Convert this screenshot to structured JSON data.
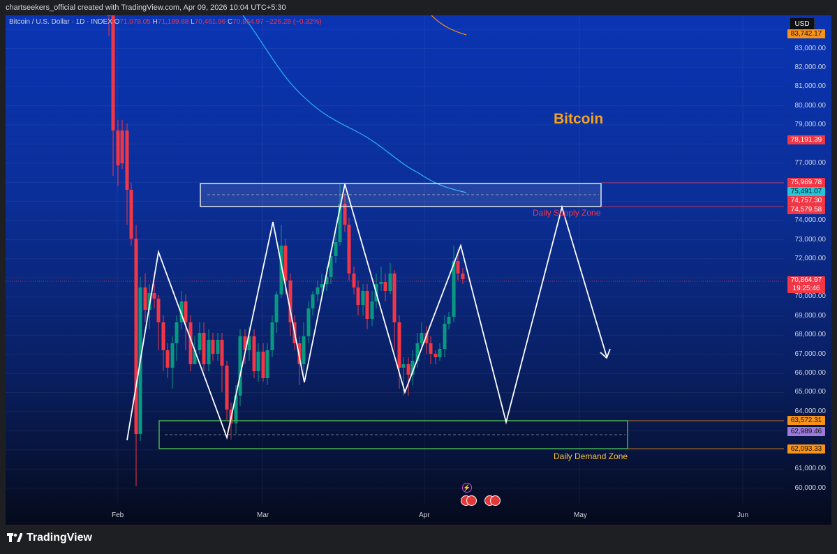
{
  "header": {
    "credit": "chartseekers_official created with TradingView.com, Apr 09, 2026 10:04 UTC+5:30"
  },
  "legend": {
    "symbol": "Bitcoin / U.S. Dollar · 1D · INDEX",
    "open_label": "O",
    "open": "71,078.05",
    "high_label": "H",
    "high": "71,189.88",
    "low_label": "L",
    "low": "70,461.96",
    "close_label": "C",
    "close": "70,864.97",
    "change": "−226.28 (−0.32%)"
  },
  "currency_button": "USD",
  "annotations": {
    "title": "Bitcoin",
    "supply_zone": "Daily Supply Zone",
    "demand_zone": "Daily Demand Zone"
  },
  "price_axis": {
    "ticks": [
      "83,000.00",
      "82,000.00",
      "81,000.00",
      "80,000.00",
      "79,000.00",
      "77,000.00",
      "74,000.00",
      "73,000.00",
      "72,000.00",
      "70,000.00",
      "69,000.00",
      "68,000.00",
      "67,000.00",
      "66,000.00",
      "65,000.00",
      "64,000.00",
      "61,000.00",
      "60,000.00"
    ],
    "tags": {
      "top": "83,742.17",
      "t1": "78,191.39",
      "t2": "75,969.78",
      "t3": "75,491.07",
      "t4": "74,757.30",
      "t5": "74,579.58",
      "last_price": "70,864.97",
      "countdown": "19:25:46",
      "d1": "63,572.31",
      "d2": "62,989.46",
      "d3": "62,093.33"
    }
  },
  "time_axis": {
    "months": [
      "Feb",
      "Mar",
      "Apr",
      "May",
      "Jun"
    ]
  },
  "footer": {
    "brand": "TradingView"
  },
  "colors": {
    "up": "#089981",
    "down": "#f23645",
    "accent": "#f7a21b",
    "ma": "#29b6f6"
  },
  "chart_data": {
    "type": "candlestick",
    "title": "",
    "price_range": [
      59500,
      84200
    ],
    "supply_zone": [
      74579.58,
      75969.78
    ],
    "demand_zone": [
      62093.33,
      63572.31
    ]
  }
}
